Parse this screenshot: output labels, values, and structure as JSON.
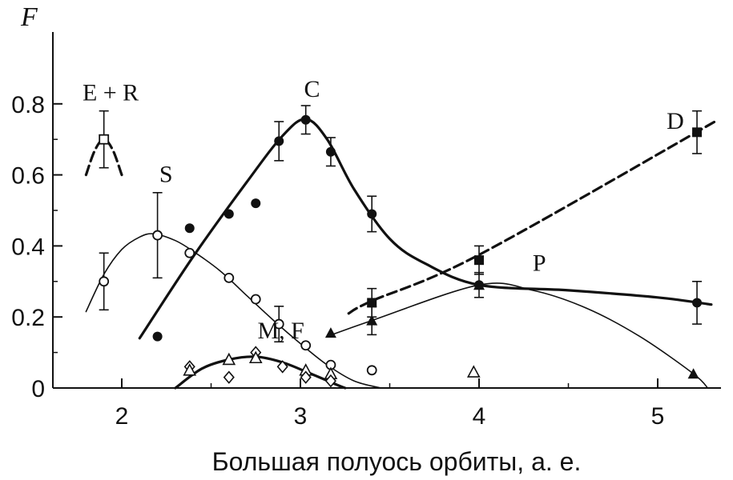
{
  "chart_data": {
    "type": "scatter",
    "title": "",
    "xlabel": "Большая полуось орбиты, а. е.",
    "ylabel": "F",
    "xlim": [
      1.6,
      5.32
    ],
    "ylim": [
      0,
      0.98
    ],
    "xticks": [
      2,
      3,
      4,
      5
    ],
    "xtick_labels": [
      "2",
      "3",
      "4",
      "5"
    ],
    "yticks": [
      0,
      0.2,
      0.4,
      0.6,
      0.8
    ],
    "ytick_labels": [
      "0",
      "0.2",
      "0.4",
      "0.6",
      "0.8"
    ],
    "grid": false,
    "series": [
      {
        "name": "E + R",
        "marker": "open-square",
        "line": "dashed",
        "points": [
          {
            "x": 1.9,
            "y": 0.7,
            "err": 0.08
          }
        ],
        "curve": [
          [
            1.8,
            0.6
          ],
          [
            1.85,
            0.67
          ],
          [
            1.9,
            0.7
          ],
          [
            1.95,
            0.67
          ],
          [
            2.0,
            0.6
          ]
        ]
      },
      {
        "name": "S",
        "marker": "open-circle",
        "line": "thin",
        "points": [
          {
            "x": 1.9,
            "y": 0.3,
            "err": 0.08
          },
          {
            "x": 2.2,
            "y": 0.43,
            "err": 0.12
          },
          {
            "x": 2.38,
            "y": 0.38
          },
          {
            "x": 2.6,
            "y": 0.31
          },
          {
            "x": 2.75,
            "y": 0.25
          },
          {
            "x": 2.88,
            "y": 0.18,
            "err": 0.05
          },
          {
            "x": 3.03,
            "y": 0.12
          },
          {
            "x": 3.17,
            "y": 0.065
          },
          {
            "x": 3.4,
            "y": 0.05
          }
        ],
        "curve": [
          [
            1.8,
            0.215
          ],
          [
            1.9,
            0.32
          ],
          [
            2.0,
            0.39
          ],
          [
            2.1,
            0.425
          ],
          [
            2.18,
            0.434
          ],
          [
            2.3,
            0.415
          ],
          [
            2.4,
            0.385
          ],
          [
            2.55,
            0.33
          ],
          [
            2.7,
            0.26
          ],
          [
            2.85,
            0.19
          ],
          [
            3.0,
            0.125
          ],
          [
            3.15,
            0.065
          ],
          [
            3.3,
            0.02
          ],
          [
            3.45,
            0.0
          ]
        ]
      },
      {
        "name": "C",
        "marker": "filled-circle",
        "line": "thick",
        "points": [
          {
            "x": 2.2,
            "y": 0.145
          },
          {
            "x": 2.38,
            "y": 0.45
          },
          {
            "x": 2.6,
            "y": 0.49
          },
          {
            "x": 2.75,
            "y": 0.52
          },
          {
            "x": 2.88,
            "y": 0.695,
            "err": 0.055
          },
          {
            "x": 3.03,
            "y": 0.755,
            "err": 0.04
          },
          {
            "x": 3.17,
            "y": 0.665,
            "err": 0.04
          },
          {
            "x": 3.4,
            "y": 0.49,
            "err": 0.05
          },
          {
            "x": 4.0,
            "y": 0.29
          },
          {
            "x": 5.22,
            "y": 0.24,
            "err": 0.06
          }
        ],
        "curve": [
          [
            2.1,
            0.14
          ],
          [
            2.4,
            0.37
          ],
          [
            2.7,
            0.58
          ],
          [
            2.9,
            0.71
          ],
          [
            3.03,
            0.757
          ],
          [
            3.15,
            0.7
          ],
          [
            3.3,
            0.56
          ],
          [
            3.5,
            0.42
          ],
          [
            3.7,
            0.35
          ],
          [
            4.0,
            0.29
          ],
          [
            4.5,
            0.275
          ],
          [
            5.0,
            0.255
          ],
          [
            5.3,
            0.235
          ]
        ]
      },
      {
        "name": "M, F",
        "marker": "open-diamond/open-triangle",
        "line": "thick",
        "points": [
          {
            "x": 2.38,
            "y": 0.06
          },
          {
            "x": 2.38,
            "y": 0.05
          },
          {
            "x": 2.6,
            "y": 0.03
          },
          {
            "x": 2.6,
            "y": 0.08
          },
          {
            "x": 2.75,
            "y": 0.1
          },
          {
            "x": 2.75,
            "y": 0.085
          },
          {
            "x": 2.9,
            "y": 0.06
          },
          {
            "x": 3.03,
            "y": 0.05
          },
          {
            "x": 3.03,
            "y": 0.03
          },
          {
            "x": 3.17,
            "y": 0.04
          },
          {
            "x": 3.17,
            "y": 0.02
          },
          {
            "x": 3.97,
            "y": 0.045
          }
        ],
        "curve": [
          [
            2.3,
            0.0
          ],
          [
            2.45,
            0.055
          ],
          [
            2.6,
            0.08
          ],
          [
            2.75,
            0.088
          ],
          [
            2.9,
            0.072
          ],
          [
            3.05,
            0.042
          ],
          [
            3.2,
            0.01
          ],
          [
            3.25,
            0.0
          ]
        ]
      },
      {
        "name": "P",
        "marker": "filled-triangle",
        "line": "thin",
        "points": [
          {
            "x": 3.17,
            "y": 0.155
          },
          {
            "x": 3.4,
            "y": 0.19,
            "err": 0.04
          },
          {
            "x": 4.0,
            "y": 0.29,
            "err": 0.035
          },
          {
            "x": 5.2,
            "y": 0.04
          }
        ],
        "curve": [
          [
            3.15,
            0.145
          ],
          [
            3.4,
            0.19
          ],
          [
            4.0,
            0.29
          ],
          [
            4.3,
            0.275
          ],
          [
            4.6,
            0.225
          ],
          [
            4.9,
            0.145
          ],
          [
            5.2,
            0.04
          ],
          [
            5.28,
            0.0
          ]
        ]
      },
      {
        "name": "D",
        "marker": "filled-square",
        "line": "dashed",
        "points": [
          {
            "x": 3.4,
            "y": 0.24,
            "err": 0.04
          },
          {
            "x": 4.0,
            "y": 0.36,
            "err": 0.04
          },
          {
            "x": 5.22,
            "y": 0.72,
            "err": 0.06
          }
        ],
        "curve": [
          [
            3.27,
            0.21
          ],
          [
            3.4,
            0.245
          ],
          [
            4.0,
            0.375
          ],
          [
            5.32,
            0.75
          ]
        ]
      }
    ],
    "annotations": [
      {
        "text": "E + R",
        "x": 1.78,
        "y": 0.81
      },
      {
        "text": "S",
        "x": 2.21,
        "y": 0.58
      },
      {
        "text": "C",
        "x": 3.02,
        "y": 0.82
      },
      {
        "text": "M, F",
        "x": 2.76,
        "y": 0.14
      },
      {
        "text": "P",
        "x": 4.3,
        "y": 0.33
      },
      {
        "text": "D",
        "x": 5.05,
        "y": 0.73
      }
    ]
  }
}
